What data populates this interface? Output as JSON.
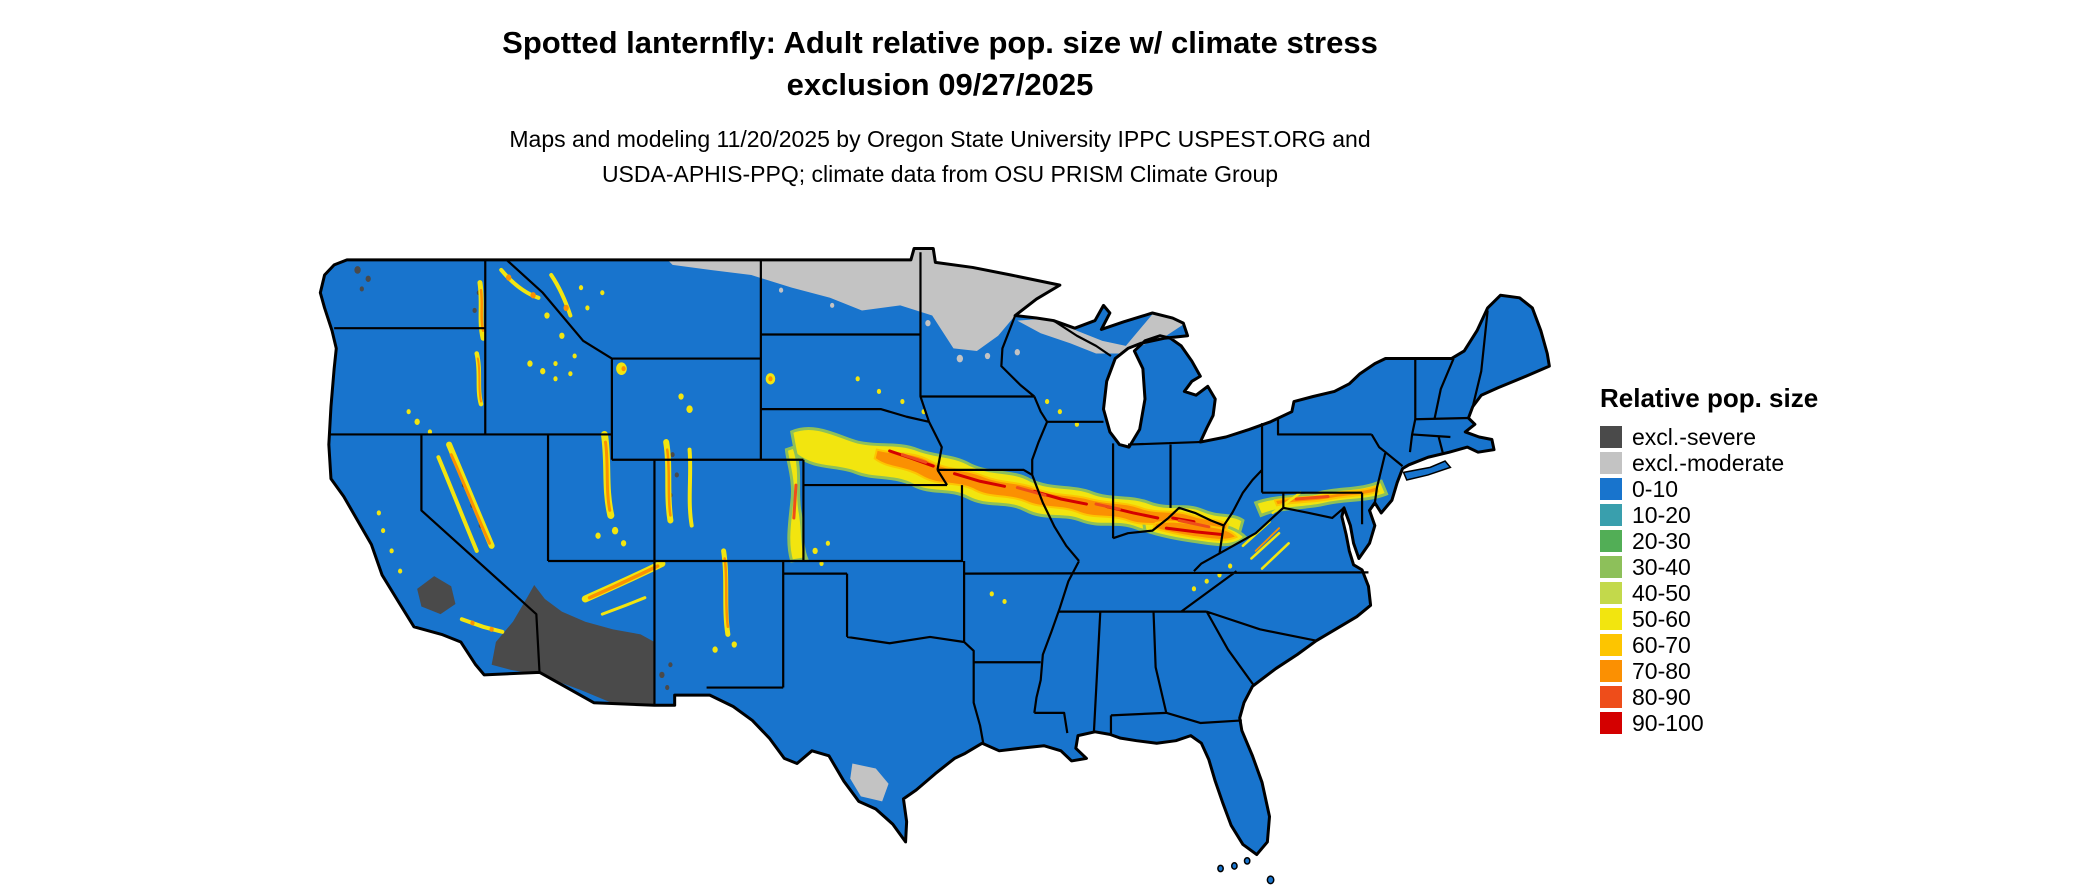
{
  "title": {
    "line1": "Spotted lanternfly: Adult relative pop. size w/ climate stress",
    "line2": "exclusion 09/27/2025"
  },
  "subtitle": {
    "line1": "Maps and modeling 11/20/2025 by Oregon State University IPPC USPEST.ORG and",
    "line2": "USDA-APHIS-PPQ; climate data from OSU PRISM Climate Group"
  },
  "legend": {
    "title": "Relative pop. size",
    "items": [
      {
        "key": "excl_severe",
        "label": "excl.-severe",
        "color": "#4A4A4A"
      },
      {
        "key": "excl_moderate",
        "label": "excl.-moderate",
        "color": "#C3C3C3"
      },
      {
        "key": "b0_10",
        "label": "0-10",
        "color": "#1874CD"
      },
      {
        "key": "b10_20",
        "label": "10-20",
        "color": "#399FAD"
      },
      {
        "key": "b20_30",
        "label": "20-30",
        "color": "#52AE56"
      },
      {
        "key": "b30_40",
        "label": "30-40",
        "color": "#8DC05A"
      },
      {
        "key": "b40_50",
        "label": "40-50",
        "color": "#C3D94B"
      },
      {
        "key": "b50_60",
        "label": "50-60",
        "color": "#F2E50F"
      },
      {
        "key": "b60_70",
        "label": "60-70",
        "color": "#FDC500"
      },
      {
        "key": "b70_80",
        "label": "70-80",
        "color": "#FB9002"
      },
      {
        "key": "b80_90",
        "label": "80-90",
        "color": "#EE4D1A"
      },
      {
        "key": "b90_100",
        "label": "90-100",
        "color": "#D40000"
      }
    ]
  },
  "map": {
    "region": "Continental United States",
    "base_value_class": "0-10"
  }
}
